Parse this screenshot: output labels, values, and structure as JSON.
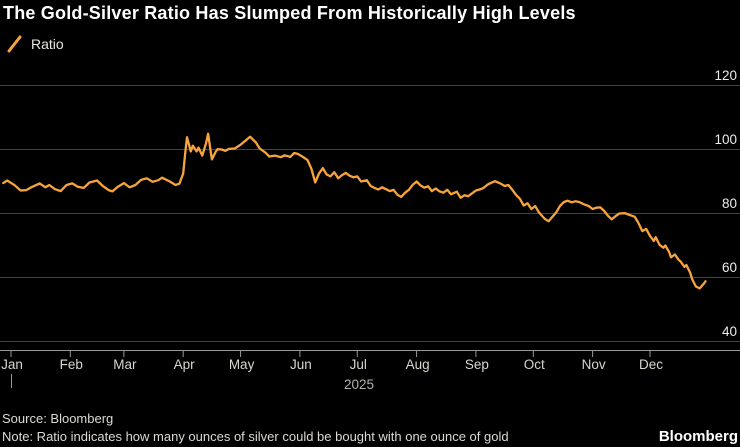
{
  "header": {
    "title": "The Gold-Silver Ratio Has Slumped From Historically High Levels",
    "legend_label": "Ratio"
  },
  "footer": {
    "source": "Source: Bloomberg",
    "note": "Note: Ratio indicates how many ounces of silver could be bought with one ounce of gold",
    "brand": "Bloomberg"
  },
  "colors": {
    "background": "#000000",
    "line": "#F8A43C",
    "grid": "#434343",
    "axis": "#9A9A9A",
    "title_text": "#FFFFFF",
    "month_label": "#D9D6CF",
    "y_label": "#ECEBE7",
    "year_label": "#B5B2AB"
  },
  "chart_data": {
    "type": "line",
    "title": "The Gold-Silver Ratio Has Slumped From Historically High Levels",
    "x_unit": "day_of_year_2025",
    "x_tick_labels": [
      "Jan",
      "Feb",
      "Mar",
      "Apr",
      "May",
      "Jun",
      "Jul",
      "Aug",
      "Sep",
      "Oct",
      "Nov",
      "Dec"
    ],
    "x_tick_days": [
      0,
      31,
      59,
      90,
      120,
      151,
      181,
      212,
      243,
      273,
      304,
      334
    ],
    "year_label": "2025",
    "y_ticks": [
      40,
      60,
      80,
      100,
      120
    ],
    "ylim": [
      36,
      122
    ],
    "grid": "horizontal",
    "y_axis_side": "right",
    "series": [
      {
        "name": "Ratio",
        "points": [
          [
            -4,
            89.5
          ],
          [
            -2,
            90.3
          ],
          [
            2,
            88.8
          ],
          [
            5,
            87.2
          ],
          [
            8,
            87.3
          ],
          [
            11,
            88.3
          ],
          [
            15,
            89.4
          ],
          [
            18,
            88.2
          ],
          [
            20,
            88.9
          ],
          [
            23,
            87.6
          ],
          [
            26,
            87.0
          ],
          [
            29,
            88.9
          ],
          [
            32,
            89.4
          ],
          [
            35,
            88.3
          ],
          [
            38,
            88.0
          ],
          [
            41,
            89.7
          ],
          [
            45,
            90.3
          ],
          [
            48,
            88.6
          ],
          [
            51,
            87.3
          ],
          [
            53,
            86.9
          ],
          [
            56,
            88.4
          ],
          [
            59,
            89.5
          ],
          [
            62,
            88.2
          ],
          [
            65,
            88.9
          ],
          [
            68,
            90.5
          ],
          [
            71,
            91.0
          ],
          [
            74,
            89.9
          ],
          [
            77,
            90.4
          ],
          [
            79,
            91.2
          ],
          [
            83,
            90.0
          ],
          [
            86,
            88.9
          ],
          [
            88,
            89.3
          ],
          [
            90,
            92.5
          ],
          [
            91,
            98.5
          ],
          [
            92,
            103.8
          ],
          [
            94,
            99.4
          ],
          [
            95,
            101.2
          ],
          [
            97,
            99.4
          ],
          [
            98,
            100.6
          ],
          [
            100,
            98.1
          ],
          [
            102,
            102.0
          ],
          [
            103,
            104.9
          ],
          [
            105,
            96.9
          ],
          [
            107,
            99.3
          ],
          [
            108,
            100.1
          ],
          [
            110,
            100.0
          ],
          [
            112,
            99.6
          ],
          [
            114,
            100.2
          ],
          [
            117,
            100.3
          ],
          [
            120,
            101.5
          ],
          [
            122,
            102.5
          ],
          [
            125,
            104.0
          ],
          [
            128,
            102.2
          ],
          [
            130,
            100.3
          ],
          [
            133,
            99.0
          ],
          [
            135,
            97.8
          ],
          [
            138,
            98.1
          ],
          [
            141,
            97.6
          ],
          [
            143,
            98.2
          ],
          [
            146,
            97.7
          ],
          [
            148,
            98.9
          ],
          [
            150,
            98.6
          ],
          [
            152,
            97.9
          ],
          [
            155,
            96.7
          ],
          [
            157,
            94.0
          ],
          [
            159,
            89.7
          ],
          [
            161,
            92.5
          ],
          [
            163,
            94.2
          ],
          [
            165,
            92.2
          ],
          [
            167,
            91.6
          ],
          [
            169,
            92.9
          ],
          [
            171,
            91.0
          ],
          [
            173,
            92.0
          ],
          [
            175,
            92.7
          ],
          [
            177,
            91.8
          ],
          [
            179,
            91.3
          ],
          [
            181,
            91.6
          ],
          [
            183,
            90.0
          ],
          [
            186,
            90.4
          ],
          [
            188,
            88.6
          ],
          [
            190,
            88.0
          ],
          [
            192,
            87.5
          ],
          [
            194,
            88.2
          ],
          [
            196,
            87.6
          ],
          [
            198,
            87.0
          ],
          [
            200,
            87.4
          ],
          [
            202,
            85.8
          ],
          [
            204,
            85.2
          ],
          [
            206,
            86.5
          ],
          [
            208,
            87.4
          ],
          [
            210,
            89.0
          ],
          [
            212,
            90.0
          ],
          [
            214,
            88.8
          ],
          [
            216,
            88.1
          ],
          [
            218,
            88.5
          ],
          [
            220,
            87.0
          ],
          [
            222,
            87.8
          ],
          [
            224,
            86.9
          ],
          [
            226,
            86.5
          ],
          [
            228,
            87.4
          ],
          [
            230,
            86.0
          ],
          [
            233,
            86.8
          ],
          [
            235,
            84.9
          ],
          [
            237,
            85.7
          ],
          [
            239,
            85.4
          ],
          [
            241,
            86.3
          ],
          [
            243,
            87.2
          ],
          [
            245,
            87.5
          ],
          [
            247,
            88.0
          ],
          [
            249,
            89.0
          ],
          [
            251,
            89.6
          ],
          [
            253,
            90.1
          ],
          [
            256,
            89.3
          ],
          [
            258,
            88.6
          ],
          [
            260,
            88.9
          ],
          [
            262,
            87.4
          ],
          [
            264,
            85.8
          ],
          [
            266,
            84.6
          ],
          [
            268,
            82.5
          ],
          [
            270,
            83.2
          ],
          [
            272,
            81.4
          ],
          [
            274,
            82.3
          ],
          [
            276,
            80.3
          ],
          [
            279,
            78.3
          ],
          [
            281,
            77.6
          ],
          [
            283,
            79.0
          ],
          [
            285,
            80.4
          ],
          [
            287,
            82.4
          ],
          [
            289,
            83.6
          ],
          [
            291,
            84.0
          ],
          [
            293,
            83.5
          ],
          [
            295,
            83.8
          ],
          [
            297,
            83.6
          ],
          [
            299,
            83.0
          ],
          [
            302,
            82.3
          ],
          [
            304,
            81.4
          ],
          [
            306,
            81.8
          ],
          [
            308,
            81.9
          ],
          [
            310,
            80.8
          ],
          [
            312,
            79.3
          ],
          [
            314,
            78.2
          ],
          [
            316,
            79.2
          ],
          [
            318,
            80.0
          ],
          [
            321,
            80.1
          ],
          [
            323,
            79.6
          ],
          [
            326,
            79.0
          ],
          [
            328,
            77.0
          ],
          [
            330,
            74.5
          ],
          [
            332,
            75.2
          ],
          [
            334,
            73.0
          ],
          [
            336,
            71.4
          ],
          [
            337,
            72.6
          ],
          [
            339,
            70.2
          ],
          [
            341,
            69.3
          ],
          [
            342,
            70.0
          ],
          [
            344,
            68.0
          ],
          [
            345,
            66.3
          ],
          [
            347,
            67.2
          ],
          [
            349,
            65.5
          ],
          [
            350,
            65.0
          ],
          [
            352,
            63.3
          ],
          [
            353,
            63.9
          ],
          [
            355,
            61.5
          ],
          [
            356,
            59.5
          ],
          [
            358,
            57.2
          ],
          [
            360,
            56.6
          ],
          [
            362,
            58.0
          ],
          [
            363,
            58.8
          ]
        ]
      }
    ]
  }
}
